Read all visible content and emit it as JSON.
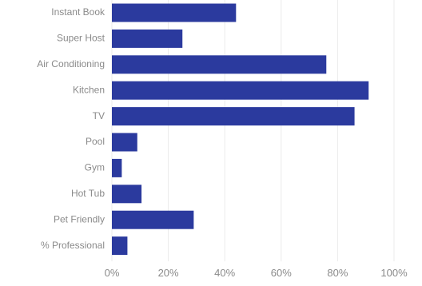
{
  "chart_data": {
    "type": "bar",
    "orientation": "horizontal",
    "categories": [
      "Instant Book",
      "Super Host",
      "Air Conditioning",
      "Kitchen",
      "TV",
      "Pool",
      "Gym",
      "Hot Tub",
      "Pet Friendly",
      "% Professional"
    ],
    "values": [
      44,
      25,
      76,
      91,
      86,
      9,
      3.5,
      10.5,
      29,
      5.5
    ],
    "xlim": [
      0,
      100
    ],
    "xticks": [
      0,
      20,
      40,
      60,
      80,
      100
    ],
    "xtick_labels": [
      "0%",
      "20%",
      "40%",
      "60%",
      "80%",
      "100%"
    ],
    "title": "",
    "xlabel": "",
    "ylabel": "",
    "grid": true,
    "bar_color": "#2b3a9e",
    "grid_color": "#ebebeb",
    "label_color": "#8a8a8a"
  }
}
